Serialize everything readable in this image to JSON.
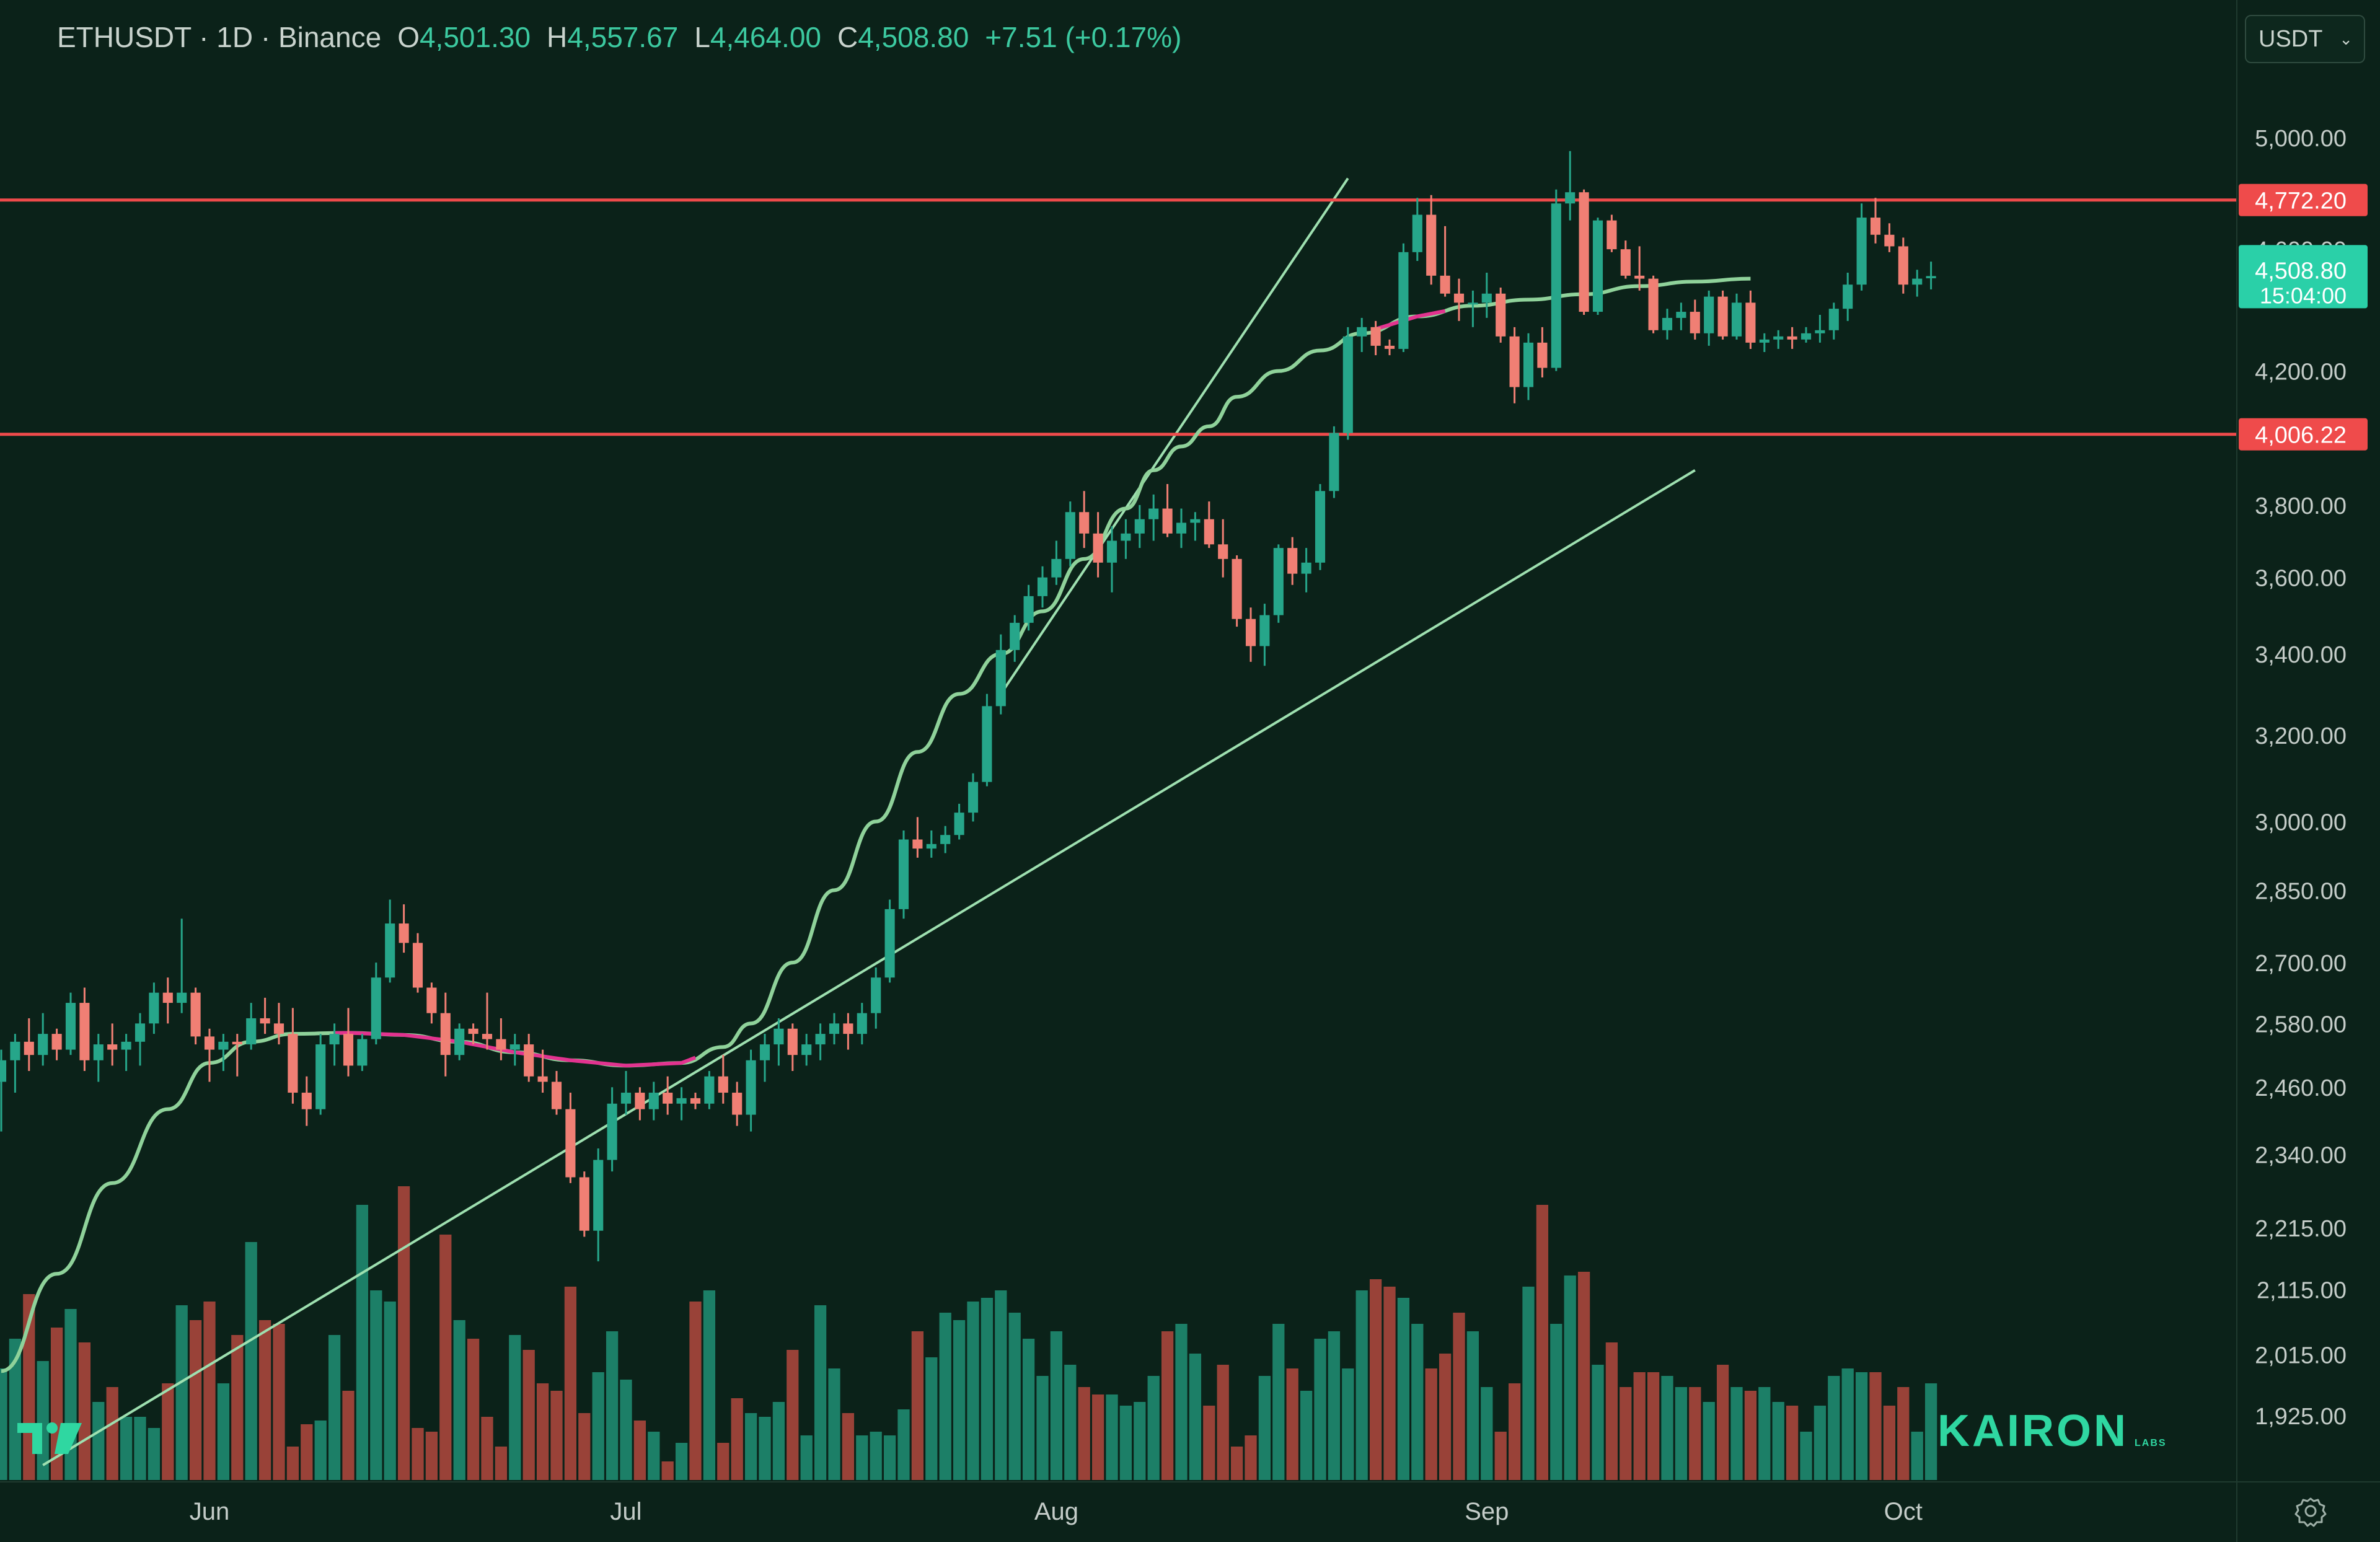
{
  "header": {
    "symbol": "ETHUSDT · 1D · Binance",
    "open_label": "O",
    "open": "4,501.30",
    "high_label": "H",
    "high": "4,557.67",
    "low_label": "L",
    "low": "4,464.00",
    "close_label": "C",
    "close": "4,508.80",
    "change": "+7.51 (+0.17%)"
  },
  "currency_select": {
    "value": "USDT"
  },
  "watermark": {
    "brand": "KAIRON",
    "sub": "LABS"
  },
  "colors": {
    "background": "#0b2219",
    "up": "#26a68a",
    "down": "#f07f74",
    "level_line": "#ef4b4b",
    "ma_line": "#8fd29a",
    "ma_segment": "#e2338f",
    "trendline": "#9ee0b0",
    "price_tag": "#2ad0a8"
  },
  "chart_data": {
    "type": "candlestick",
    "symbol": "ETHUSDT",
    "timeframe": "1D",
    "exchange": "Binance",
    "scale": "log",
    "ylim": [
      1850,
      5250
    ],
    "y_ticks": [
      5000,
      4600,
      4200,
      3800,
      3600,
      3400,
      3200,
      3000,
      2850,
      2700,
      2580,
      2460,
      2340,
      2215,
      2115,
      2015,
      1925
    ],
    "y_tick_labels": [
      "5,000.00",
      "4,600.00",
      "4,200.00",
      "3,800.00",
      "3,600.00",
      "3,400.00",
      "3,200.00",
      "3,000.00",
      "2,850.00",
      "2,700.00",
      "2,580.00",
      "2,460.00",
      "2,340.00",
      "2,215.00",
      "2,115.00",
      "2,015.00",
      "1,925.00"
    ],
    "x_ticks": [
      {
        "label": "Jun",
        "day": 1
      },
      {
        "label": "Jul",
        "day": 31
      },
      {
        "label": "Aug",
        "day": 62
      },
      {
        "label": "Sep",
        "day": 93
      },
      {
        "label": "Oct",
        "day": 123
      }
    ],
    "first_day": -14,
    "horizontal_levels": [
      {
        "price": 4772.2,
        "label": "4,772.20"
      },
      {
        "price": 4006.22,
        "label": "4,006.22"
      }
    ],
    "last_price": {
      "price": 4508.8,
      "label": "4,508.80",
      "countdown": "15:04:00"
    },
    "candles": [
      [
        2470,
        2530,
        2380,
        2510
      ],
      [
        2510,
        2560,
        2450,
        2545
      ],
      [
        2545,
        2590,
        2490,
        2520
      ],
      [
        2520,
        2600,
        2500,
        2560
      ],
      [
        2560,
        2570,
        2510,
        2530
      ],
      [
        2530,
        2640,
        2520,
        2620
      ],
      [
        2620,
        2650,
        2490,
        2510
      ],
      [
        2510,
        2560,
        2470,
        2540
      ],
      [
        2540,
        2580,
        2500,
        2530
      ],
      [
        2530,
        2560,
        2490,
        2545
      ],
      [
        2545,
        2600,
        2500,
        2580
      ],
      [
        2580,
        2660,
        2560,
        2640
      ],
      [
        2640,
        2670,
        2580,
        2620
      ],
      [
        2620,
        2790,
        2600,
        2640
      ],
      [
        2640,
        2650,
        2540,
        2555
      ],
      [
        2555,
        2570,
        2470,
        2530
      ],
      [
        2530,
        2560,
        2490,
        2545
      ],
      [
        2545,
        2560,
        2480,
        2540
      ],
      [
        2540,
        2620,
        2530,
        2590
      ],
      [
        2590,
        2630,
        2560,
        2580
      ],
      [
        2580,
        2620,
        2540,
        2560
      ],
      [
        2560,
        2610,
        2430,
        2450
      ],
      [
        2450,
        2480,
        2390,
        2420
      ],
      [
        2420,
        2560,
        2410,
        2540
      ],
      [
        2540,
        2580,
        2500,
        2560
      ],
      [
        2560,
        2610,
        2480,
        2500
      ],
      [
        2500,
        2560,
        2490,
        2550
      ],
      [
        2550,
        2700,
        2540,
        2670
      ],
      [
        2670,
        2830,
        2660,
        2780
      ],
      [
        2780,
        2820,
        2720,
        2740
      ],
      [
        2740,
        2760,
        2640,
        2650
      ],
      [
        2650,
        2660,
        2580,
        2600
      ],
      [
        2600,
        2640,
        2480,
        2520
      ],
      [
        2520,
        2580,
        2510,
        2570
      ],
      [
        2570,
        2580,
        2540,
        2560
      ],
      [
        2560,
        2640,
        2530,
        2550
      ],
      [
        2550,
        2590,
        2510,
        2530
      ],
      [
        2530,
        2560,
        2500,
        2540
      ],
      [
        2540,
        2560,
        2470,
        2480
      ],
      [
        2480,
        2530,
        2450,
        2470
      ],
      [
        2470,
        2490,
        2410,
        2420
      ],
      [
        2420,
        2450,
        2290,
        2300
      ],
      [
        2300,
        2310,
        2200,
        2210
      ],
      [
        2210,
        2350,
        2160,
        2330
      ],
      [
        2330,
        2460,
        2310,
        2430
      ],
      [
        2430,
        2490,
        2410,
        2450
      ],
      [
        2450,
        2460,
        2400,
        2420
      ],
      [
        2420,
        2470,
        2400,
        2450
      ],
      [
        2450,
        2480,
        2410,
        2430
      ],
      [
        2430,
        2460,
        2400,
        2440
      ],
      [
        2440,
        2450,
        2420,
        2430
      ],
      [
        2430,
        2490,
        2420,
        2480
      ],
      [
        2480,
        2520,
        2430,
        2450
      ],
      [
        2450,
        2470,
        2390,
        2410
      ],
      [
        2410,
        2530,
        2380,
        2510
      ],
      [
        2510,
        2560,
        2470,
        2540
      ],
      [
        2540,
        2590,
        2500,
        2570
      ],
      [
        2570,
        2580,
        2490,
        2520
      ],
      [
        2520,
        2560,
        2500,
        2540
      ],
      [
        2540,
        2580,
        2510,
        2560
      ],
      [
        2560,
        2600,
        2540,
        2580
      ],
      [
        2580,
        2600,
        2530,
        2560
      ],
      [
        2560,
        2620,
        2540,
        2600
      ],
      [
        2600,
        2690,
        2570,
        2670
      ],
      [
        2670,
        2830,
        2660,
        2810
      ],
      [
        2810,
        2980,
        2790,
        2960
      ],
      [
        2960,
        3010,
        2920,
        2940
      ],
      [
        2940,
        2980,
        2920,
        2950
      ],
      [
        2950,
        2990,
        2930,
        2970
      ],
      [
        2970,
        3040,
        2960,
        3020
      ],
      [
        3020,
        3110,
        3000,
        3090
      ],
      [
        3090,
        3300,
        3080,
        3270
      ],
      [
        3270,
        3450,
        3250,
        3410
      ],
      [
        3410,
        3500,
        3380,
        3480
      ],
      [
        3480,
        3580,
        3460,
        3550
      ],
      [
        3550,
        3630,
        3520,
        3600
      ],
      [
        3600,
        3700,
        3580,
        3650
      ],
      [
        3650,
        3810,
        3630,
        3780
      ],
      [
        3780,
        3840,
        3680,
        3720
      ],
      [
        3720,
        3780,
        3600,
        3640
      ],
      [
        3640,
        3740,
        3560,
        3700
      ],
      [
        3700,
        3760,
        3650,
        3720
      ],
      [
        3720,
        3800,
        3680,
        3760
      ],
      [
        3760,
        3830,
        3700,
        3790
      ],
      [
        3790,
        3860,
        3710,
        3720
      ],
      [
        3720,
        3790,
        3680,
        3750
      ],
      [
        3750,
        3780,
        3700,
        3760
      ],
      [
        3760,
        3810,
        3680,
        3690
      ],
      [
        3690,
        3760,
        3600,
        3650
      ],
      [
        3650,
        3660,
        3470,
        3490
      ],
      [
        3490,
        3520,
        3380,
        3420
      ],
      [
        3420,
        3530,
        3370,
        3500
      ],
      [
        3500,
        3690,
        3480,
        3680
      ],
      [
        3680,
        3710,
        3580,
        3610
      ],
      [
        3610,
        3680,
        3560,
        3640
      ],
      [
        3640,
        3860,
        3620,
        3840
      ],
      [
        3840,
        4030,
        3820,
        4010
      ],
      [
        4010,
        4340,
        3990,
        4310
      ],
      [
        4310,
        4370,
        4260,
        4340
      ],
      [
        4340,
        4360,
        4250,
        4280
      ],
      [
        4280,
        4300,
        4250,
        4270
      ],
      [
        4270,
        4620,
        4260,
        4590
      ],
      [
        4590,
        4780,
        4560,
        4720
      ],
      [
        4720,
        4790,
        4480,
        4510
      ],
      [
        4510,
        4680,
        4440,
        4450
      ],
      [
        4450,
        4500,
        4360,
        4420
      ],
      [
        4420,
        4460,
        4340,
        4420
      ],
      [
        4420,
        4520,
        4370,
        4450
      ],
      [
        4450,
        4470,
        4290,
        4310
      ],
      [
        4310,
        4340,
        4100,
        4150
      ],
      [
        4150,
        4320,
        4110,
        4290
      ],
      [
        4290,
        4340,
        4180,
        4210
      ],
      [
        4210,
        4810,
        4200,
        4760
      ],
      [
        4760,
        4950,
        4700,
        4800
      ],
      [
        4800,
        4810,
        4380,
        4390
      ],
      [
        4390,
        4710,
        4380,
        4700
      ],
      [
        4700,
        4720,
        4590,
        4600
      ],
      [
        4600,
        4630,
        4500,
        4510
      ],
      [
        4510,
        4610,
        4460,
        4500
      ],
      [
        4500,
        4510,
        4320,
        4330
      ],
      [
        4330,
        4400,
        4300,
        4370
      ],
      [
        4370,
        4420,
        4330,
        4390
      ],
      [
        4390,
        4430,
        4300,
        4320
      ],
      [
        4320,
        4460,
        4280,
        4440
      ],
      [
        4440,
        4460,
        4300,
        4310
      ],
      [
        4310,
        4450,
        4300,
        4420
      ],
      [
        4420,
        4460,
        4270,
        4290
      ],
      [
        4290,
        4320,
        4260,
        4300
      ],
      [
        4300,
        4330,
        4270,
        4310
      ],
      [
        4310,
        4340,
        4270,
        4300
      ],
      [
        4300,
        4340,
        4290,
        4320
      ],
      [
        4320,
        4380,
        4290,
        4330
      ],
      [
        4330,
        4420,
        4300,
        4400
      ],
      [
        4400,
        4520,
        4360,
        4480
      ],
      [
        4480,
        4760,
        4460,
        4710
      ],
      [
        4710,
        4780,
        4620,
        4650
      ],
      [
        4650,
        4690,
        4590,
        4610
      ],
      [
        4610,
        4640,
        4450,
        4480
      ],
      [
        4480,
        4530,
        4440,
        4500
      ],
      [
        4501.3,
        4557.67,
        4464.0,
        4508.8
      ]
    ],
    "volume": [
      0.3,
      0.38,
      0.5,
      0.32,
      0.41,
      0.46,
      0.37,
      0.21,
      0.25,
      0.17,
      0.17,
      0.14,
      0.26,
      0.47,
      0.43,
      0.48,
      0.26,
      0.39,
      0.64,
      0.43,
      0.42,
      0.09,
      0.15,
      0.16,
      0.39,
      0.24,
      0.74,
      0.51,
      0.48,
      0.79,
      0.14,
      0.13,
      0.66,
      0.43,
      0.38,
      0.17,
      0.09,
      0.39,
      0.35,
      0.26,
      0.24,
      0.52,
      0.18,
      0.29,
      0.4,
      0.27,
      0.16,
      0.13,
      0.05,
      0.1,
      0.48,
      0.51,
      0.1,
      0.22,
      0.18,
      0.17,
      0.21,
      0.35,
      0.12,
      0.47,
      0.3,
      0.18,
      0.12,
      0.13,
      0.12,
      0.19,
      0.4,
      0.33,
      0.45,
      0.43,
      0.48,
      0.49,
      0.51,
      0.45,
      0.38,
      0.28,
      0.4,
      0.31,
      0.25,
      0.23,
      0.23,
      0.2,
      0.21,
      0.28,
      0.4,
      0.42,
      0.34,
      0.2,
      0.31,
      0.09,
      0.12,
      0.28,
      0.42,
      0.3,
      0.24,
      0.38,
      0.4,
      0.3,
      0.51,
      0.54,
      0.52,
      0.49,
      0.42,
      0.3,
      0.34,
      0.45,
      0.4,
      0.25,
      0.13,
      0.26,
      0.52,
      0.74,
      0.42,
      0.55,
      0.56,
      0.31,
      0.37,
      0.25,
      0.29,
      0.29,
      0.28,
      0.25,
      0.25,
      0.21,
      0.31,
      0.25,
      0.24,
      0.25,
      0.21,
      0.2,
      0.13,
      0.2,
      0.28,
      0.3,
      0.29,
      0.29,
      0.2,
      0.25,
      0.13,
      0.26,
      0.05
    ],
    "moving_average": [
      [
        -14,
        1990
      ],
      [
        -10,
        2140
      ],
      [
        -6,
        2290
      ],
      [
        -2,
        2420
      ],
      [
        1,
        2505
      ],
      [
        4,
        2545
      ],
      [
        7,
        2560
      ],
      [
        11,
        2562
      ],
      [
        15,
        2558
      ],
      [
        19,
        2545
      ],
      [
        23,
        2525
      ],
      [
        27,
        2510
      ],
      [
        31,
        2500
      ],
      [
        35,
        2505
      ],
      [
        38,
        2535
      ],
      [
        40,
        2580
      ],
      [
        43,
        2700
      ],
      [
        46,
        2850
      ],
      [
        49,
        3000
      ],
      [
        52,
        3160
      ],
      [
        55,
        3300
      ],
      [
        58,
        3400
      ],
      [
        61,
        3510
      ],
      [
        64,
        3650
      ],
      [
        67,
        3790
      ],
      [
        69,
        3900
      ],
      [
        71,
        3970
      ],
      [
        73,
        4030
      ],
      [
        75,
        4120
      ],
      [
        78,
        4200
      ],
      [
        81,
        4265
      ],
      [
        84,
        4320
      ],
      [
        88,
        4375
      ],
      [
        92,
        4410
      ],
      [
        96,
        4430
      ],
      [
        100,
        4448
      ],
      [
        104,
        4475
      ],
      [
        108,
        4490
      ],
      [
        112,
        4500
      ]
    ],
    "ma_pink_segments": [
      [
        10,
        36
      ],
      [
        85,
        90
      ]
    ],
    "trendlines": [
      {
        "from": [
          58,
          3300
        ],
        "to": [
          83,
          4850
        ]
      },
      {
        "from": [
          -11,
          1855
        ],
        "to": [
          108,
          3900
        ]
      }
    ]
  }
}
